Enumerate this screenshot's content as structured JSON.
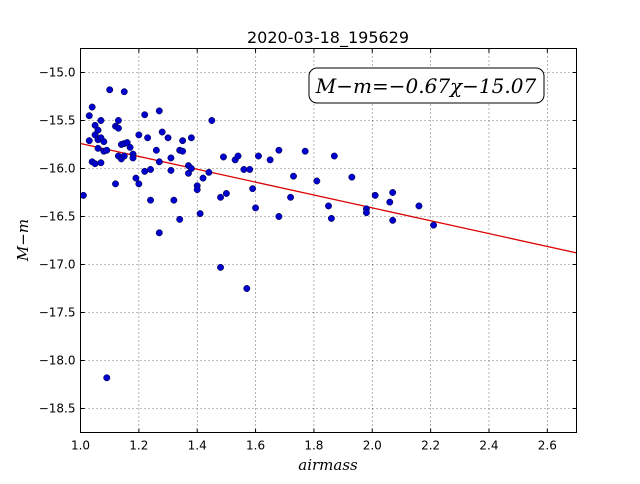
{
  "chart_data": {
    "type": "scatter",
    "title": "2020-03-18_195629",
    "xlabel": "airmass",
    "ylabel": "M−m",
    "annotation": "M−m=−0.67χ−15.07",
    "xlim": [
      1.0,
      2.7
    ],
    "ylim": [
      -18.75,
      -14.75
    ],
    "y_inverted": true,
    "grid": true,
    "x_ticks": [
      1.0,
      1.2,
      1.4,
      1.6,
      1.8,
      2.0,
      2.2,
      2.4,
      2.6
    ],
    "x_tick_labels": [
      "1.0",
      "1.2",
      "1.4",
      "1.6",
      "1.8",
      "2.0",
      "2.2",
      "2.4",
      "2.6"
    ],
    "y_ticks": [
      -15.0,
      -15.5,
      -16.0,
      -16.5,
      -17.0,
      -17.5,
      -18.0,
      -18.5
    ],
    "y_tick_labels": [
      "−15.0",
      "−15.5",
      "−16.0",
      "−16.5",
      "−17.0",
      "−17.5",
      "−18.0",
      "−18.5"
    ],
    "series": [
      {
        "marker_color": "#0000cc",
        "points": [
          [
            1.01,
            -16.28
          ],
          [
            1.03,
            -15.45
          ],
          [
            1.03,
            -15.71
          ],
          [
            1.04,
            -15.36
          ],
          [
            1.04,
            -15.93
          ],
          [
            1.05,
            -15.55
          ],
          [
            1.05,
            -15.65
          ],
          [
            1.05,
            -15.95
          ],
          [
            1.06,
            -15.6
          ],
          [
            1.06,
            -15.7
          ],
          [
            1.06,
            -15.79
          ],
          [
            1.07,
            -15.5
          ],
          [
            1.07,
            -15.68
          ],
          [
            1.07,
            -15.94
          ],
          [
            1.08,
            -15.72
          ],
          [
            1.08,
            -15.82
          ],
          [
            1.09,
            -15.81
          ],
          [
            1.09,
            -18.18
          ],
          [
            1.1,
            -15.18
          ],
          [
            1.12,
            -15.56
          ],
          [
            1.12,
            -16.16
          ],
          [
            1.13,
            -15.5
          ],
          [
            1.13,
            -15.58
          ],
          [
            1.13,
            -15.87
          ],
          [
            1.14,
            -15.75
          ],
          [
            1.14,
            -15.9
          ],
          [
            1.15,
            -15.2
          ],
          [
            1.15,
            -15.74
          ],
          [
            1.15,
            -15.87
          ],
          [
            1.16,
            -15.73
          ],
          [
            1.17,
            -15.78
          ],
          [
            1.18,
            -15.85
          ],
          [
            1.18,
            -15.89
          ],
          [
            1.19,
            -16.1
          ],
          [
            1.2,
            -15.65
          ],
          [
            1.2,
            -16.16
          ],
          [
            1.22,
            -15.44
          ],
          [
            1.22,
            -16.03
          ],
          [
            1.23,
            -15.68
          ],
          [
            1.24,
            -16.33
          ],
          [
            1.24,
            -16.01
          ],
          [
            1.26,
            -15.81
          ],
          [
            1.27,
            -15.4
          ],
          [
            1.27,
            -15.93
          ],
          [
            1.27,
            -16.67
          ],
          [
            1.28,
            -15.62
          ],
          [
            1.3,
            -15.68
          ],
          [
            1.31,
            -15.89
          ],
          [
            1.31,
            -16.02
          ],
          [
            1.32,
            -16.33
          ],
          [
            1.34,
            -15.81
          ],
          [
            1.34,
            -16.53
          ],
          [
            1.35,
            -15.71
          ],
          [
            1.35,
            -15.82
          ],
          [
            1.37,
            -16.05
          ],
          [
            1.37,
            -15.97
          ],
          [
            1.38,
            -16.0
          ],
          [
            1.38,
            -15.68
          ],
          [
            1.4,
            -16.18
          ],
          [
            1.4,
            -16.22
          ],
          [
            1.41,
            -16.47
          ],
          [
            1.42,
            -16.1
          ],
          [
            1.44,
            -16.04
          ],
          [
            1.45,
            -15.5
          ],
          [
            1.48,
            -16.3
          ],
          [
            1.48,
            -17.03
          ],
          [
            1.49,
            -15.88
          ],
          [
            1.5,
            -16.26
          ],
          [
            1.53,
            -15.91
          ],
          [
            1.54,
            -15.87
          ],
          [
            1.56,
            -16.01
          ],
          [
            1.57,
            -17.25
          ],
          [
            1.58,
            -16.01
          ],
          [
            1.59,
            -16.21
          ],
          [
            1.6,
            -16.41
          ],
          [
            1.61,
            -15.87
          ],
          [
            1.65,
            -15.91
          ],
          [
            1.68,
            -15.81
          ],
          [
            1.68,
            -16.5
          ],
          [
            1.72,
            -16.3
          ],
          [
            1.73,
            -16.08
          ],
          [
            1.77,
            -15.82
          ],
          [
            1.81,
            -16.13
          ],
          [
            1.85,
            -16.39
          ],
          [
            1.86,
            -16.52
          ],
          [
            1.87,
            -15.87
          ],
          [
            1.93,
            -16.09
          ],
          [
            1.98,
            -16.42
          ],
          [
            1.98,
            -16.46
          ],
          [
            2.01,
            -16.28
          ],
          [
            2.06,
            -16.35
          ],
          [
            2.07,
            -16.25
          ],
          [
            2.07,
            -16.54
          ],
          [
            2.16,
            -16.39
          ],
          [
            2.21,
            -16.59
          ]
        ]
      }
    ],
    "fit_line": {
      "color": "#dd0000",
      "x": [
        1.0,
        2.7
      ],
      "y": [
        -15.74,
        -16.879
      ]
    }
  }
}
